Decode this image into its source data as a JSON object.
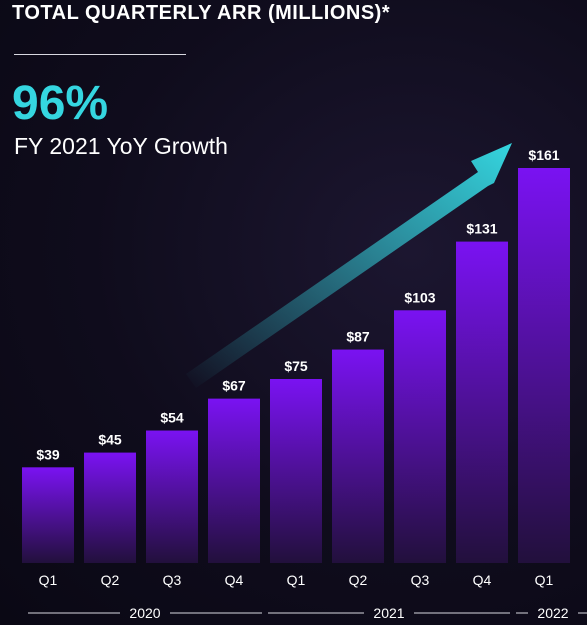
{
  "title": "TOTAL QUARTERLY ARR (MILLIONS)*",
  "kpi": {
    "value": "96%",
    "label": "FY 2021 YoY Growth"
  },
  "colors": {
    "bar_top": "#7a12f2",
    "bar_bottom": "#22103c",
    "accent": "#35d6e0"
  },
  "icons": {
    "growth": "growth-arrow-icon"
  },
  "chart_data": {
    "type": "bar",
    "categories": [
      "Q1",
      "Q2",
      "Q3",
      "Q4",
      "Q1",
      "Q2",
      "Q3",
      "Q4",
      "Q1"
    ],
    "values": [
      39,
      45,
      54,
      67,
      75,
      87,
      103,
      131,
      161
    ],
    "data_labels": [
      "$39",
      "$45",
      "$54",
      "$67",
      "$75",
      "$87",
      "$103",
      "$131",
      "$161"
    ],
    "year_groups": [
      {
        "label": "2020",
        "start": 0,
        "end": 3
      },
      {
        "label": "2021",
        "start": 4,
        "end": 7
      },
      {
        "label": "2022",
        "start": 8,
        "end": 8
      }
    ],
    "title": "TOTAL QUARTERLY ARR (MILLIONS)*",
    "xlabel": "",
    "ylabel": "",
    "ylim": [
      0,
      161
    ],
    "grid": false,
    "legend": "none"
  }
}
